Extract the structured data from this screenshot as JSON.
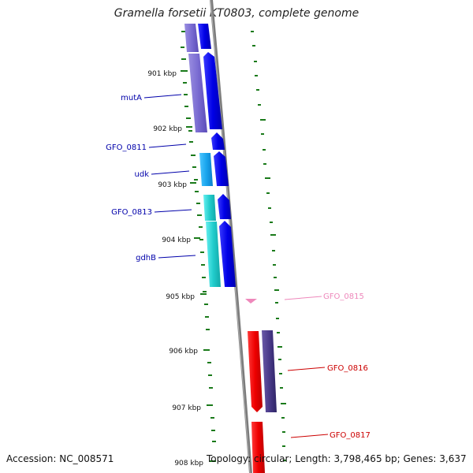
{
  "title": "Gramella forsetii KT0803, complete genome",
  "accession_text": "Accession: NC_008571",
  "summary_text": "Topology: circular; Length: 3,798,465 bp; Genes: 3,637",
  "colors": {
    "backbone": "#888888",
    "gc_skew": "#1a7a1a",
    "forward_cds": "#0000ee",
    "gene_purple": "#7766cc",
    "gene_cyan": "#11cccc",
    "reverse_cds": "#ee0000",
    "dark_purple": "#443388",
    "pink_feature": "#ee88bb",
    "label_blue": "#0000aa",
    "label_red": "#cc0000"
  },
  "kbp_ticks": [
    {
      "label": "901 kbp"
    },
    {
      "label": "902 kbp"
    },
    {
      "label": "903 kbp"
    },
    {
      "label": "904 kbp"
    },
    {
      "label": "905 kbp"
    },
    {
      "label": "906 kbp"
    },
    {
      "label": "907 kbp"
    },
    {
      "label": "908 kbp"
    }
  ],
  "gene_labels": [
    {
      "text": "mutA",
      "color": "#0000aa"
    },
    {
      "text": "GFO_0811",
      "color": "#0000aa"
    },
    {
      "text": "udk",
      "color": "#0000aa"
    },
    {
      "text": "GFO_0813",
      "color": "#0000aa"
    },
    {
      "text": "gdhB",
      "color": "#0000aa"
    },
    {
      "text": "GFO_0815",
      "color": "#ee88bb"
    },
    {
      "text": "GFO_0816",
      "color": "#cc0000"
    },
    {
      "text": "GFO_0817",
      "color": "#cc0000"
    }
  ]
}
